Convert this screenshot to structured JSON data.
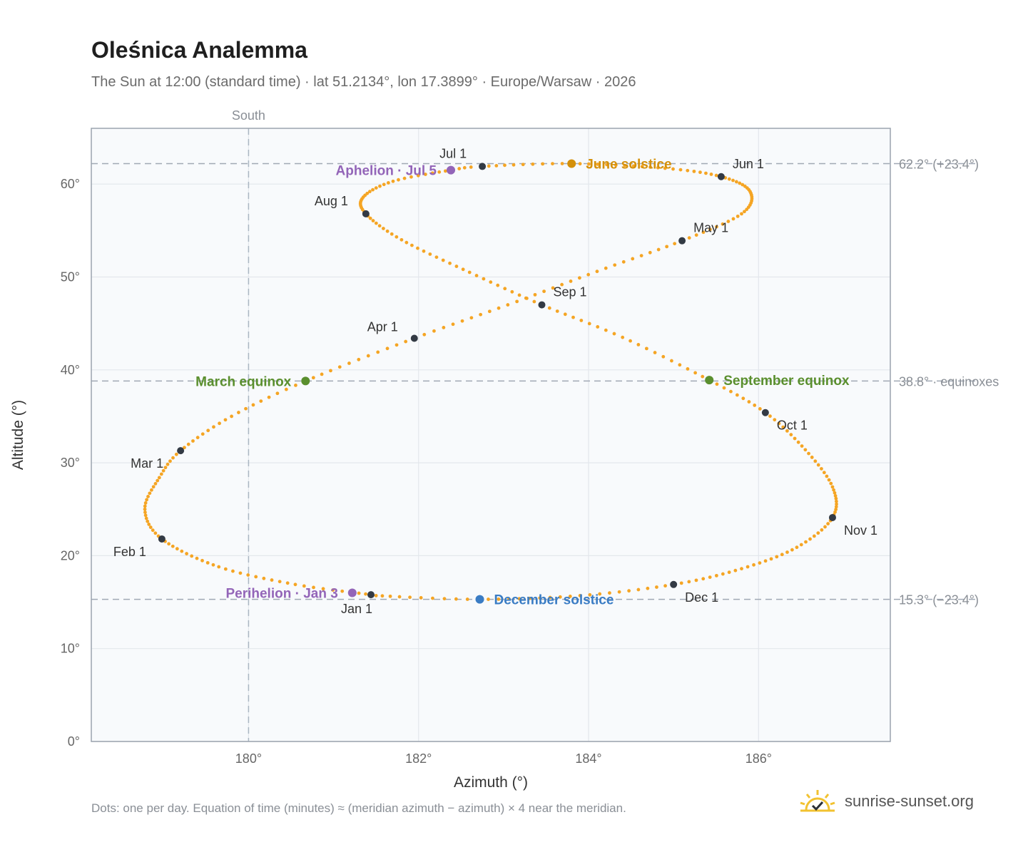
{
  "title": "Oleśnica Analemma",
  "subtitle": "The Sun at 12:00 (standard time) · lat 51.2134°, lon 17.3899° · Europe/Warsaw · 2026",
  "footnote": "Dots: one per day. Equation of time (minutes) ≈ (meridian azimuth − azimuth) × 4 near the meridian.",
  "brand": {
    "name": "sunrise-sunset.org",
    "icon": "sun-check-icon"
  },
  "colors": {
    "path": "#f5a524",
    "month": "#333a44",
    "june": "#d4900a",
    "december": "#3a7cc4",
    "equinox": "#5a8f2e",
    "apsis": "#9365b8",
    "ref": "#a0a8b4"
  },
  "chart_data": {
    "type": "scatter",
    "xlabel": "Azimuth (°)",
    "ylabel": "Altitude (°)",
    "xlim": [
      178.15,
      187.55
    ],
    "ylim": [
      0,
      66
    ],
    "xticks": [
      180,
      182,
      184,
      186
    ],
    "xtick_labels": [
      "180°",
      "182°",
      "184°",
      "186°"
    ],
    "yticks": [
      0,
      10,
      20,
      30,
      40,
      50,
      60
    ],
    "ytick_labels": [
      "0°",
      "10°",
      "20°",
      "30°",
      "40°",
      "50°",
      "60°"
    ],
    "grid": true,
    "south": {
      "azimuth": 180,
      "label": "South"
    },
    "reference_lines": [
      {
        "altitude": 62.2,
        "label": "62.2° (+23.4°)"
      },
      {
        "altitude": 38.8,
        "label": "38.8° · equinoxes"
      },
      {
        "altitude": 15.3,
        "label": "15.3° (−23.4°)"
      }
    ],
    "path_key": [
      {
        "day": 1,
        "az": 181.44,
        "alt": 15.8
      },
      {
        "day": 10,
        "az": 180.55,
        "alt": 16.9
      },
      {
        "day": 20,
        "az": 179.65,
        "alt": 18.8
      },
      {
        "day": 32,
        "az": 178.98,
        "alt": 21.8
      },
      {
        "day": 42,
        "az": 178.78,
        "alt": 25.0
      },
      {
        "day": 52,
        "az": 178.95,
        "alt": 28.4
      },
      {
        "day": 60,
        "az": 179.2,
        "alt": 31.3
      },
      {
        "day": 70,
        "az": 179.8,
        "alt": 35.0
      },
      {
        "day": 79,
        "az": 180.67,
        "alt": 38.8
      },
      {
        "day": 91,
        "az": 181.95,
        "alt": 43.4
      },
      {
        "day": 101,
        "az": 183.05,
        "alt": 47.0
      },
      {
        "day": 111,
        "az": 184.1,
        "alt": 50.6
      },
      {
        "day": 121,
        "az": 185.1,
        "alt": 53.9
      },
      {
        "day": 131,
        "az": 185.8,
        "alt": 56.8
      },
      {
        "day": 142,
        "az": 185.9,
        "alt": 59.2
      },
      {
        "day": 152,
        "az": 185.56,
        "alt": 60.8
      },
      {
        "day": 161,
        "az": 184.9,
        "alt": 61.7
      },
      {
        "day": 172,
        "az": 183.8,
        "alt": 62.2
      },
      {
        "day": 182,
        "az": 182.75,
        "alt": 61.9
      },
      {
        "day": 186,
        "az": 182.38,
        "alt": 61.5
      },
      {
        "day": 195,
        "az": 181.7,
        "alt": 60.3
      },
      {
        "day": 204,
        "az": 181.35,
        "alt": 58.6
      },
      {
        "day": 213,
        "az": 181.38,
        "alt": 56.8
      },
      {
        "day": 223,
        "az": 181.8,
        "alt": 54.0
      },
      {
        "day": 234,
        "az": 182.6,
        "alt": 50.5
      },
      {
        "day": 244,
        "az": 183.45,
        "alt": 47.0
      },
      {
        "day": 254,
        "az": 184.4,
        "alt": 43.5
      },
      {
        "day": 265,
        "az": 185.42,
        "alt": 38.9
      },
      {
        "day": 274,
        "az": 186.08,
        "alt": 35.4
      },
      {
        "day": 284,
        "az": 186.55,
        "alt": 31.4
      },
      {
        "day": 294,
        "az": 186.87,
        "alt": 27.4
      },
      {
        "day": 305,
        "az": 186.87,
        "alt": 24.1
      },
      {
        "day": 315,
        "az": 186.45,
        "alt": 20.9
      },
      {
        "day": 325,
        "az": 185.8,
        "alt": 18.6
      },
      {
        "day": 335,
        "az": 185.0,
        "alt": 16.9
      },
      {
        "day": 345,
        "az": 183.9,
        "alt": 15.7
      },
      {
        "day": 355,
        "az": 182.7,
        "alt": 15.3
      },
      {
        "day": 365,
        "az": 181.5,
        "alt": 15.7
      }
    ],
    "month_markers": [
      {
        "label": "Jan 1",
        "az": 181.44,
        "alt": 15.8
      },
      {
        "label": "Feb 1",
        "az": 178.98,
        "alt": 21.8
      },
      {
        "label": "Mar 1",
        "az": 179.2,
        "alt": 31.3
      },
      {
        "label": "Apr 1",
        "az": 181.95,
        "alt": 43.4
      },
      {
        "label": "May 1",
        "az": 185.1,
        "alt": 53.9
      },
      {
        "label": "Jun 1",
        "az": 185.56,
        "alt": 60.8
      },
      {
        "label": "Jul 1",
        "az": 182.75,
        "alt": 61.9
      },
      {
        "label": "Aug 1",
        "az": 181.38,
        "alt": 56.8
      },
      {
        "label": "Sep 1",
        "az": 183.45,
        "alt": 47.0
      },
      {
        "label": "Oct 1",
        "az": 186.08,
        "alt": 35.4
      },
      {
        "label": "Nov 1",
        "az": 186.87,
        "alt": 24.1
      },
      {
        "label": "Dec 1",
        "az": 185.0,
        "alt": 16.9
      }
    ],
    "events": [
      {
        "label": "June solstice",
        "az": 183.8,
        "alt": 62.2,
        "color": "#d4900a",
        "side": "right"
      },
      {
        "label": "December solstice",
        "az": 182.72,
        "alt": 15.3,
        "color": "#3a7cc4",
        "side": "right"
      },
      {
        "label": "March equinox",
        "az": 180.67,
        "alt": 38.8,
        "color": "#5a8f2e",
        "side": "left"
      },
      {
        "label": "September equinox",
        "az": 185.42,
        "alt": 38.9,
        "color": "#5a8f2e",
        "side": "right"
      },
      {
        "label": "Aphelion · Jul 5",
        "az": 182.38,
        "alt": 61.5,
        "color": "#9365b8",
        "side": "left"
      },
      {
        "label": "Perihelion · Jan 3",
        "az": 181.22,
        "alt": 16.0,
        "color": "#9365b8",
        "side": "left"
      }
    ]
  }
}
